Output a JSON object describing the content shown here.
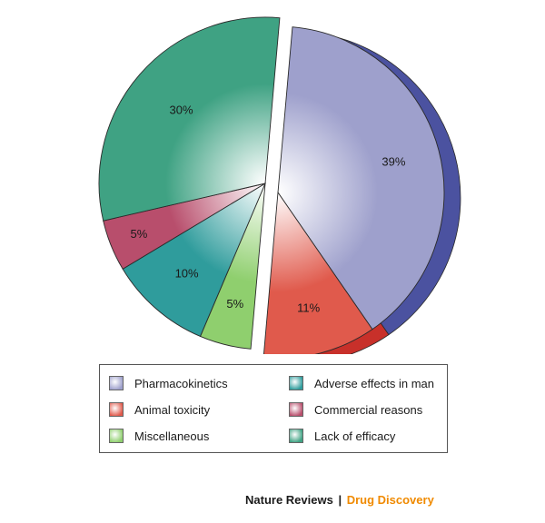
{
  "chart_data": {
    "type": "pie",
    "slices": [
      {
        "label": "Pharmacokinetics",
        "value": 39,
        "value_label": "39%",
        "color": "#9ea0cc",
        "edge_color": "#4b52a0"
      },
      {
        "label": "Animal toxicity",
        "value": 11,
        "value_label": "11%",
        "color": "#e05a4c",
        "edge_color": "#c8302a"
      },
      {
        "label": "Miscellaneous",
        "value": 5,
        "value_label": "5%",
        "color": "#8fcf6e",
        "edge_color": "#68b34c"
      },
      {
        "label": "Adverse effects in man",
        "value": 10,
        "value_label": "10%",
        "color": "#2f9c9c",
        "edge_color": "#1d7b7b"
      },
      {
        "label": "Commercial reasons",
        "value": 5,
        "value_label": "5%",
        "color": "#b84e6c",
        "edge_color": "#8f2f4b"
      },
      {
        "label": "Lack of efficacy",
        "value": 30,
        "value_label": "30%",
        "color": "#3fa283",
        "edge_color": "#2b8567"
      }
    ],
    "exploded_slices": [
      "Pharmacokinetics",
      "Animal toxicity"
    ],
    "legend_position": "bottom"
  },
  "legend": {
    "items": [
      {
        "label": "Pharmacokinetics",
        "color": "#9ea0cc"
      },
      {
        "label": "Adverse effects in man",
        "color": "#2f9c9c"
      },
      {
        "label": "Animal toxicity",
        "color": "#e05a4c"
      },
      {
        "label": "Commercial reasons",
        "color": "#b84e6c"
      },
      {
        "label": "Miscellaneous",
        "color": "#8fcf6e"
      },
      {
        "label": "Lack of efficacy",
        "color": "#3fa283"
      }
    ]
  },
  "credit": {
    "journal": "Nature Reviews",
    "separator": "|",
    "topic": "Drug Discovery",
    "topic_color": "#f08a00"
  }
}
